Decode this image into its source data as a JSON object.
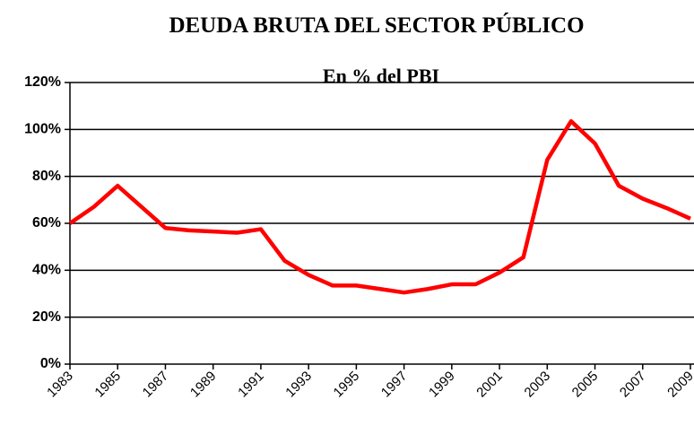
{
  "chart_data": {
    "type": "line",
    "title": "DEUDA BRUTA DEL SECTOR PÚBLICO",
    "subtitle": "En % del PBI",
    "x": [
      1983,
      1984,
      1985,
      1986,
      1987,
      1988,
      1989,
      1990,
      1991,
      1992,
      1993,
      1994,
      1995,
      1996,
      1997,
      1998,
      1999,
      2000,
      2001,
      2002,
      2003,
      2004,
      2005,
      2006,
      2007,
      2008,
      2009
    ],
    "series": [
      {
        "color": "#ff0000",
        "values": [
          60,
          67,
          76,
          67,
          58,
          57,
          56.5,
          56,
          57.5,
          44,
          38,
          33.5,
          33.5,
          32,
          30.5,
          32,
          34,
          34,
          39,
          45.5,
          87,
          103.5,
          94,
          76,
          70.5,
          66.5,
          62
        ]
      }
    ],
    "xlim": [
      1983,
      2009
    ],
    "xticks": [
      1983,
      1985,
      1987,
      1989,
      1991,
      1993,
      1995,
      1997,
      1999,
      2001,
      2003,
      2005,
      2007,
      2009
    ],
    "ylim": [
      0,
      120
    ],
    "yticks": [
      {
        "value": 0,
        "label": "0%"
      },
      {
        "value": 20,
        "label": "20%"
      },
      {
        "value": 40,
        "label": "40%"
      },
      {
        "value": 60,
        "label": "60%"
      },
      {
        "value": 80,
        "label": "80%"
      },
      {
        "value": 100,
        "label": "100%"
      },
      {
        "value": 120,
        "label": "120%"
      }
    ],
    "grid": true
  }
}
